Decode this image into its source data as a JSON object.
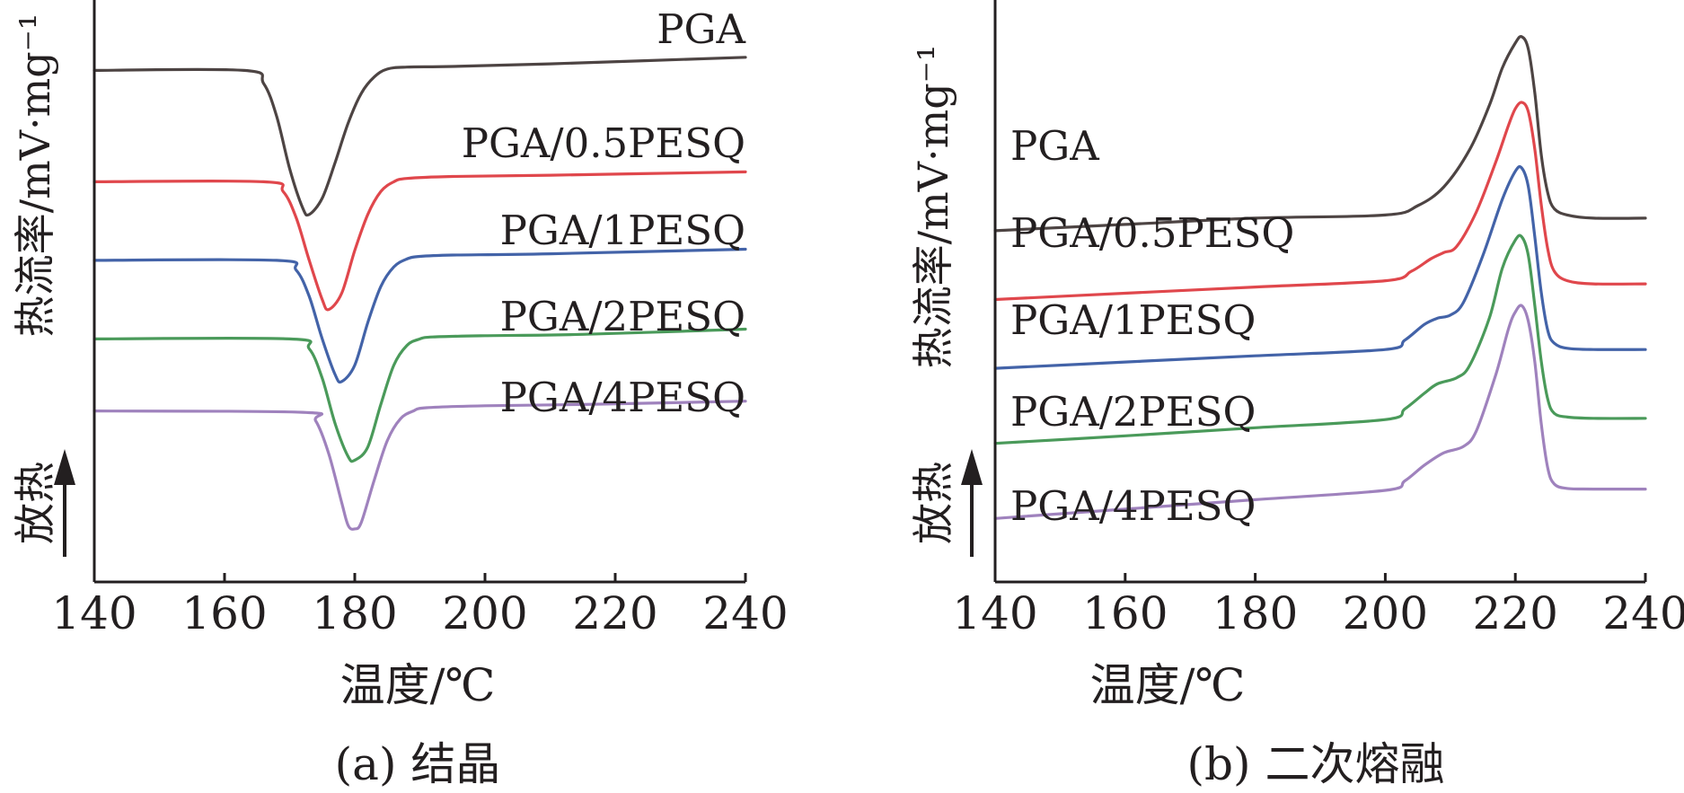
{
  "figure": {
    "panels_caption": [
      "(a) 结晶",
      "(b) 二次熔融"
    ]
  },
  "colors": {
    "PGA": "#4d4443",
    "PGA/0.5PESQ": "#e0474c",
    "PGA/1PESQ": "#4363a8",
    "PGA/2PESQ": "#4a9a5a",
    "PGA/4PESQ": "#9f82bd",
    "axis": "#231f20"
  },
  "chart_data": [
    {
      "type": "line",
      "panel": "a",
      "caption": "(a) 结晶",
      "title": "",
      "xlabel": "温度/℃",
      "ylabel": "热流率/mV·mg⁻¹",
      "exo_label": "放热",
      "xlim": [
        140,
        240
      ],
      "xticks": [
        "140",
        "160",
        "180",
        "200",
        "220",
        "240"
      ],
      "y_ticks_shown": false,
      "grid": false,
      "legend": "labels above each curve",
      "y_units": "relative offset (no y scale printed)",
      "series": [
        {
          "name": "PGA",
          "color_key": "PGA",
          "x": [
            140,
            163,
            166,
            168,
            170,
            172,
            173,
            175,
            177,
            179,
            181,
            183,
            185,
            188,
            195,
            210,
            240
          ],
          "y": [
            10.7,
            10.7,
            10.5,
            10.0,
            9.2,
            8.6,
            8.5,
            8.75,
            9.3,
            9.9,
            10.35,
            10.6,
            10.72,
            10.75,
            10.76,
            10.8,
            10.9
          ]
        },
        {
          "name": "PGA/0.5PESQ",
          "color_key": "PGA/0.5PESQ",
          "x": [
            140,
            166,
            169,
            171,
            173,
            175,
            176,
            178,
            180,
            182,
            184,
            186,
            188,
            195,
            210,
            240
          ],
          "y": [
            9.0,
            9.0,
            8.85,
            8.45,
            7.8,
            7.2,
            7.05,
            7.3,
            7.95,
            8.5,
            8.85,
            9.0,
            9.05,
            9.08,
            9.1,
            9.15
          ]
        },
        {
          "name": "PGA/1PESQ",
          "color_key": "PGA/1PESQ",
          "x": [
            140,
            168,
            171,
            173,
            175,
            177,
            178,
            180,
            182,
            184,
            186,
            188,
            190,
            195,
            210,
            240
          ],
          "y": [
            7.8,
            7.8,
            7.65,
            7.25,
            6.6,
            6.05,
            5.95,
            6.2,
            6.85,
            7.4,
            7.7,
            7.82,
            7.86,
            7.88,
            7.9,
            7.97
          ]
        },
        {
          "name": "PGA/2PESQ",
          "color_key": "PGA/2PESQ",
          "x": [
            140,
            170,
            173,
            175,
            177,
            179,
            180,
            182,
            184,
            186,
            188,
            190,
            192,
            200,
            215,
            240
          ],
          "y": [
            6.6,
            6.6,
            6.45,
            6.0,
            5.3,
            4.8,
            4.75,
            4.95,
            5.6,
            6.2,
            6.5,
            6.6,
            6.63,
            6.65,
            6.67,
            6.75
          ]
        },
        {
          "name": "PGA/4PESQ",
          "color_key": "PGA/4PESQ",
          "x": [
            140,
            172,
            174,
            176,
            178,
            179,
            180,
            181,
            183,
            185,
            187,
            189,
            191,
            200,
            215,
            240
          ],
          "y": [
            5.5,
            5.48,
            5.35,
            4.85,
            4.1,
            3.75,
            3.7,
            3.8,
            4.45,
            5.05,
            5.38,
            5.5,
            5.55,
            5.58,
            5.6,
            5.65
          ]
        }
      ]
    },
    {
      "type": "line",
      "panel": "b",
      "caption": "(b) 二次熔融",
      "title": "",
      "xlabel": "温度/℃",
      "ylabel": "热流率/mV·mg⁻¹",
      "exo_label": "放热",
      "xlim": [
        140,
        240
      ],
      "xticks": [
        "140",
        "160",
        "180",
        "200",
        "220",
        "240"
      ],
      "y_ticks_shown": false,
      "grid": false,
      "legend": "labels above each curve",
      "y_units": "relative offset (no y scale printed)",
      "series": [
        {
          "name": "PGA",
          "color_key": "PGA",
          "x": [
            140,
            160,
            180,
            200,
            205,
            209,
            213,
            216,
            218,
            220,
            221,
            222,
            223,
            224,
            225,
            226,
            228,
            232,
            240
          ],
          "y": [
            9.0,
            9.1,
            9.2,
            9.25,
            9.4,
            9.7,
            10.3,
            11.0,
            11.6,
            12.0,
            12.1,
            11.9,
            11.2,
            10.2,
            9.6,
            9.35,
            9.25,
            9.2,
            9.2
          ]
        },
        {
          "name": "PGA/0.5PESQ",
          "color_key": "PGA/0.5PESQ",
          "x": [
            140,
            160,
            180,
            200,
            204,
            207,
            209,
            211,
            214,
            217,
            219,
            220,
            221,
            222,
            223,
            224,
            225,
            226,
            228,
            232,
            240
          ],
          "y": [
            7.9,
            8.0,
            8.1,
            8.2,
            8.35,
            8.55,
            8.65,
            8.75,
            9.3,
            10.1,
            10.7,
            10.95,
            11.05,
            10.9,
            10.3,
            9.4,
            8.7,
            8.35,
            8.2,
            8.15,
            8.15
          ]
        },
        {
          "name": "PGA/1PESQ",
          "color_key": "PGA/1PESQ",
          "x": [
            140,
            160,
            180,
            200,
            203,
            206,
            208,
            210,
            212,
            215,
            218,
            220,
            221,
            222,
            223,
            224,
            225,
            226,
            228,
            232,
            240
          ],
          "y": [
            6.8,
            6.9,
            7.0,
            7.1,
            7.25,
            7.5,
            7.6,
            7.65,
            7.85,
            8.6,
            9.5,
            9.95,
            10.0,
            9.7,
            8.9,
            8.0,
            7.4,
            7.2,
            7.12,
            7.1,
            7.1
          ]
        },
        {
          "name": "PGA/2PESQ",
          "color_key": "PGA/2PESQ",
          "x": [
            140,
            160,
            180,
            200,
            203,
            206,
            208,
            211,
            213,
            216,
            218,
            220,
            221,
            222,
            223,
            224,
            225,
            226,
            228,
            232,
            240
          ],
          "y": [
            5.6,
            5.72,
            5.85,
            5.98,
            6.15,
            6.4,
            6.55,
            6.65,
            6.85,
            7.6,
            8.4,
            8.85,
            8.9,
            8.6,
            7.8,
            6.9,
            6.3,
            6.08,
            6.02,
            6.0,
            6.0
          ]
        },
        {
          "name": "PGA/4PESQ",
          "color_key": "PGA/4PESQ",
          "x": [
            140,
            160,
            180,
            200,
            203,
            206,
            209,
            212,
            214,
            217,
            219,
            220,
            221,
            222,
            223,
            224,
            225,
            226,
            228,
            232,
            240
          ],
          "y": [
            4.4,
            4.55,
            4.7,
            4.85,
            5.0,
            5.25,
            5.45,
            5.55,
            5.8,
            6.7,
            7.45,
            7.7,
            7.8,
            7.55,
            6.9,
            5.9,
            5.2,
            4.95,
            4.88,
            4.87,
            4.87
          ]
        }
      ]
    }
  ]
}
